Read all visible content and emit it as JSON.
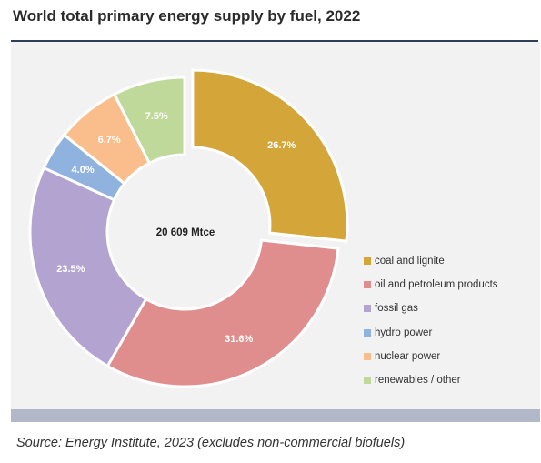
{
  "title": "World total primary energy supply by fuel, 2022",
  "source": "Source: Energy Institute, 2023 (excludes non-commercial biofuels)",
  "chart_data": {
    "type": "pie",
    "center_label": "20 609 Mtce",
    "legend_position": "right",
    "slices": [
      {
        "name": "coal and lignite",
        "value": 26.7,
        "label": "26.7%",
        "color": "#d4a63a",
        "exploded": true
      },
      {
        "name": "oil and petroleum products",
        "value": 31.6,
        "label": "31.6%",
        "color": "#e08d8d",
        "exploded": false
      },
      {
        "name": "fossil gas",
        "value": 23.5,
        "label": "23.5%",
        "color": "#b3a3d1",
        "exploded": false
      },
      {
        "name": "hydro power",
        "value": 4.0,
        "label": "4.0%",
        "color": "#8fb3de",
        "exploded": false
      },
      {
        "name": "nuclear power",
        "value": 6.7,
        "label": "6.7%",
        "color": "#f9be8c",
        "exploded": false
      },
      {
        "name": "renewables / other",
        "value": 7.5,
        "label": "7.5%",
        "color": "#bfd99a",
        "exploded": false
      }
    ]
  }
}
